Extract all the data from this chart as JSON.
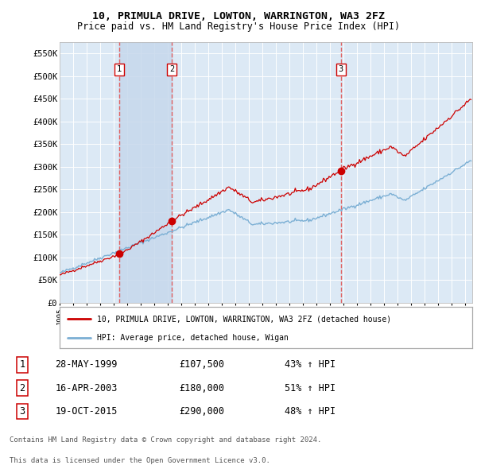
{
  "title": "10, PRIMULA DRIVE, LOWTON, WARRINGTON, WA3 2FZ",
  "subtitle": "Price paid vs. HM Land Registry's House Price Index (HPI)",
  "background_color": "#ffffff",
  "plot_bg_color": "#dce9f5",
  "grid_color": "#ffffff",
  "hpi_line_color": "#7bafd4",
  "price_line_color": "#cc0000",
  "sale_dashed_color": "#e06060",
  "purchases": [
    {
      "date_float": 1999.408,
      "price": 107500,
      "label": "1"
    },
    {
      "date_float": 2003.288,
      "price": 180000,
      "label": "2"
    },
    {
      "date_float": 2015.799,
      "price": 290000,
      "label": "3"
    }
  ],
  "legend_entries": [
    "10, PRIMULA DRIVE, LOWTON, WARRINGTON, WA3 2FZ (detached house)",
    "HPI: Average price, detached house, Wigan"
  ],
  "table_rows": [
    [
      "1",
      "28-MAY-1999",
      "£107,500",
      "43% ↑ HPI"
    ],
    [
      "2",
      "16-APR-2003",
      "£180,000",
      "51% ↑ HPI"
    ],
    [
      "3",
      "19-OCT-2015",
      "£290,000",
      "48% ↑ HPI"
    ]
  ],
  "footer_line1": "Contains HM Land Registry data © Crown copyright and database right 2024.",
  "footer_line2": "This data is licensed under the Open Government Licence v3.0.",
  "ylim": [
    0,
    575000
  ],
  "yticks": [
    0,
    50000,
    100000,
    150000,
    200000,
    250000,
    300000,
    350000,
    400000,
    450000,
    500000,
    550000
  ],
  "ytick_labels": [
    "£0",
    "£50K",
    "£100K",
    "£150K",
    "£200K",
    "£250K",
    "£300K",
    "£350K",
    "£400K",
    "£450K",
    "£500K",
    "£550K"
  ],
  "xstart": 1995.0,
  "xend": 2025.5,
  "xticks": [
    1995,
    1996,
    1997,
    1998,
    1999,
    2000,
    2001,
    2002,
    2003,
    2004,
    2005,
    2006,
    2007,
    2008,
    2009,
    2010,
    2011,
    2012,
    2013,
    2014,
    2015,
    2016,
    2017,
    2018,
    2019,
    2020,
    2021,
    2022,
    2023,
    2024,
    2025
  ]
}
